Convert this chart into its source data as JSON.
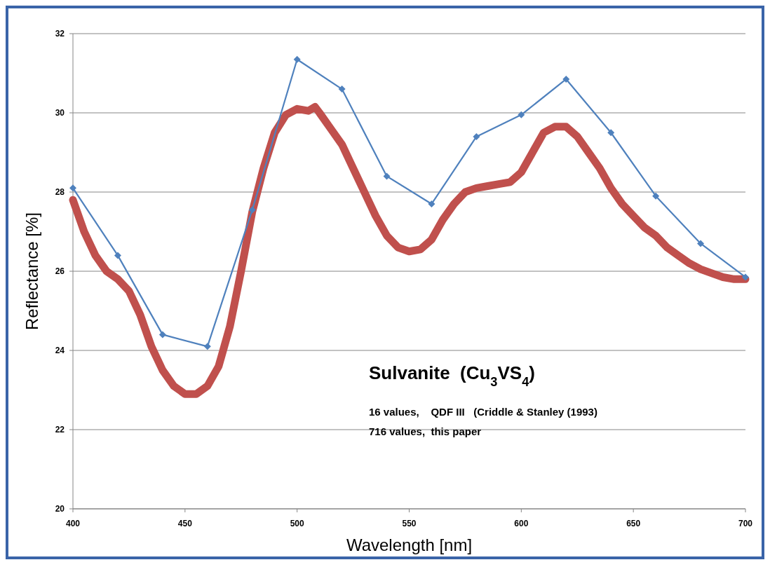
{
  "chart_data": {
    "type": "line",
    "xlabel": "Wavelength [nm]",
    "ylabel": "Reflectance [%]",
    "xlim": [
      400,
      700
    ],
    "xticks": [
      400,
      450,
      500,
      550,
      600,
      650,
      700
    ],
    "ylim": [
      20,
      32
    ],
    "yticks": [
      20,
      22,
      24,
      26,
      28,
      30,
      32
    ],
    "grid": "y",
    "annotations": [
      "Sulvanite  (Cu$_{3}$VS$_{4}$)",
      "16 values,    QDF III   (Criddle & Stanley (1993)",
      "716 values,  this paper"
    ],
    "series": [
      {
        "color": "#4f81bd",
        "marker": "diamond",
        "x": [
          400,
          420,
          440,
          460,
          480,
          500,
          520,
          540,
          560,
          580,
          600,
          620,
          640,
          660,
          680,
          700
        ],
        "values": [
          28.1,
          26.4,
          24.4,
          24.1,
          27.55,
          31.35,
          30.6,
          28.4,
          27.7,
          29.4,
          29.95,
          30.85,
          29.5,
          27.9,
          26.7,
          25.85
        ]
      },
      {
        "color": "#c0504d",
        "marker": "none",
        "x": [
          400,
          405,
          410,
          415,
          420,
          425,
          430,
          435,
          440,
          445,
          450,
          455,
          460,
          465,
          470,
          475,
          480,
          485,
          490,
          495,
          500,
          505,
          508,
          510,
          515,
          520,
          525,
          530,
          535,
          540,
          545,
          550,
          555,
          560,
          565,
          570,
          575,
          580,
          585,
          590,
          595,
          600,
          605,
          610,
          615,
          620,
          625,
          630,
          635,
          640,
          645,
          650,
          655,
          660,
          665,
          670,
          675,
          680,
          685,
          690,
          695,
          700
        ],
        "values": [
          27.8,
          27.0,
          26.4,
          26.0,
          25.8,
          25.5,
          24.9,
          24.1,
          23.5,
          23.1,
          22.9,
          22.9,
          23.1,
          23.6,
          24.6,
          26.0,
          27.5,
          28.6,
          29.5,
          29.95,
          30.1,
          30.05,
          30.15,
          30.0,
          29.6,
          29.2,
          28.6,
          28.0,
          27.4,
          26.9,
          26.6,
          26.5,
          26.55,
          26.8,
          27.3,
          27.7,
          28.0,
          28.1,
          28.15,
          28.2,
          28.25,
          28.5,
          29.0,
          29.5,
          29.65,
          29.65,
          29.4,
          29.0,
          28.6,
          28.1,
          27.7,
          27.4,
          27.1,
          26.9,
          26.6,
          26.4,
          26.2,
          26.05,
          25.95,
          25.85,
          25.8,
          25.8
        ]
      }
    ]
  }
}
